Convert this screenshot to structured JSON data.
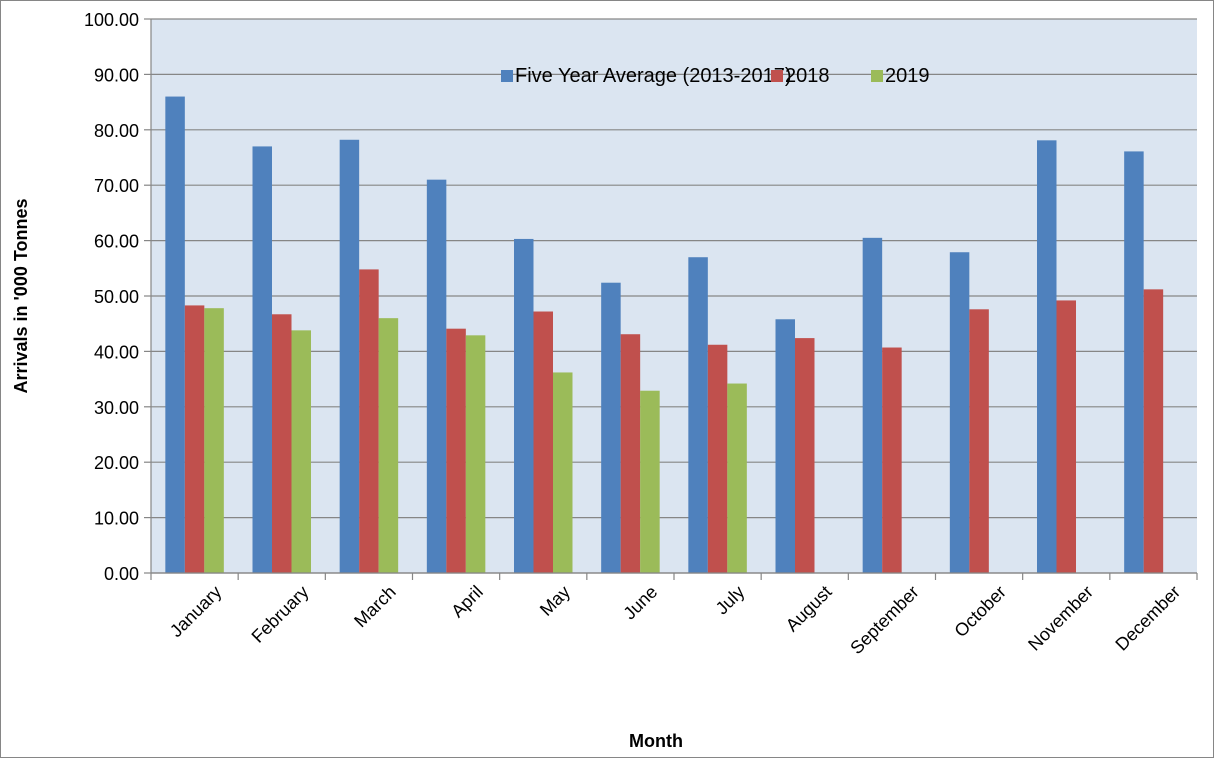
{
  "chart_data": {
    "type": "bar",
    "title": "",
    "xlabel": "Month",
    "ylabel": "Arrivals in '000 Tonnes",
    "ylim": [
      0,
      100
    ],
    "y_ticks": [
      "0.00",
      "10.00",
      "20.00",
      "30.00",
      "40.00",
      "50.00",
      "60.00",
      "70.00",
      "80.00",
      "90.00",
      "100.00"
    ],
    "grid": true,
    "legend_position": "top-right",
    "plot_background": "#dbe5f1",
    "categories": [
      "January",
      "February",
      "March",
      "April",
      "May",
      "June",
      "July",
      "August",
      "September",
      "October",
      "November",
      "December"
    ],
    "series": [
      {
        "name": "Five Year Average (2013-2017)",
        "color": "#4f81bd",
        "values": [
          86.0,
          77.0,
          78.2,
          71.0,
          60.3,
          52.4,
          57.0,
          45.8,
          60.5,
          57.9,
          78.1,
          76.1
        ]
      },
      {
        "name": "2018",
        "color": "#c0504d",
        "values": [
          48.3,
          46.7,
          54.8,
          44.1,
          47.2,
          43.1,
          41.2,
          42.4,
          40.7,
          47.6,
          49.2,
          51.2
        ]
      },
      {
        "name": "2019",
        "color": "#9bbb59",
        "values": [
          47.8,
          43.8,
          46.0,
          42.9,
          36.2,
          32.9,
          34.2,
          null,
          null,
          null,
          null,
          null
        ]
      }
    ]
  }
}
